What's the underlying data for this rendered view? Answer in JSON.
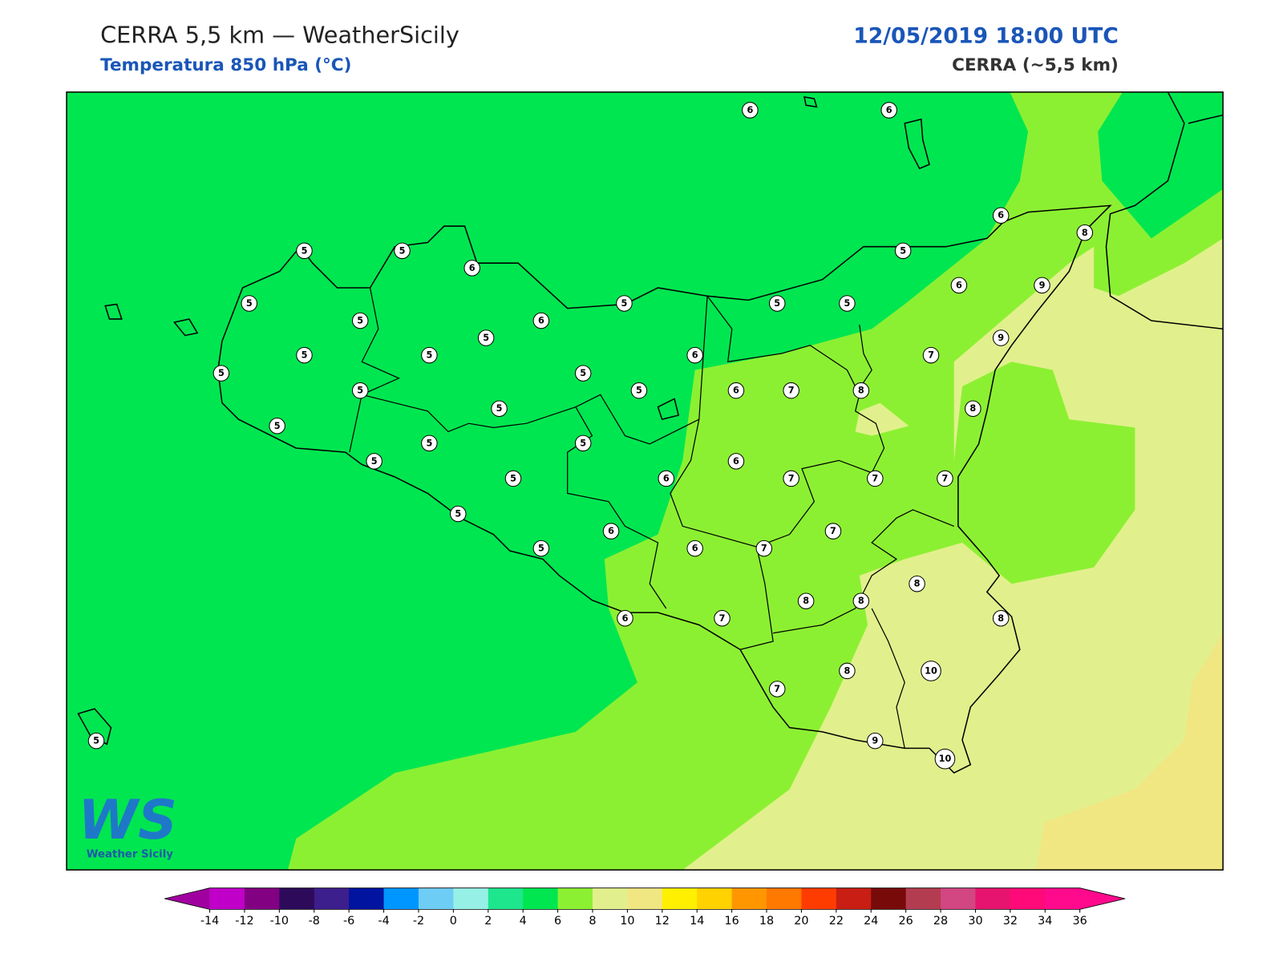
{
  "header": {
    "title": "CERRA 5,5 km — WeatherSicily",
    "subtitle": "Temperatura 850 hPa (°C)",
    "datetime": "12/05/2019 18:00 UTC",
    "model": "CERRA (~5,5 km)"
  },
  "logo": {
    "mark": "WS",
    "text": "Weather Sicily"
  },
  "map": {
    "station_values": [
      6,
      6,
      6,
      8,
      5,
      5,
      6,
      5,
      6,
      9,
      5,
      5,
      5,
      5,
      5,
      6,
      5,
      9,
      5,
      5,
      6,
      7,
      5,
      5,
      5,
      5,
      6,
      7,
      8,
      5,
      8,
      5,
      5,
      5,
      5,
      6,
      5,
      6,
      7,
      7,
      7,
      5,
      7,
      6,
      5,
      6,
      7,
      8,
      8,
      8,
      8,
      6,
      7,
      10,
      8,
      7,
      5,
      9,
      10
    ]
  },
  "colorbar": {
    "ticks": [
      -14,
      -12,
      -10,
      -8,
      -6,
      -4,
      -2,
      0,
      2,
      4,
      6,
      8,
      10,
      12,
      14,
      16,
      18,
      20,
      22,
      24,
      26,
      28,
      30,
      32,
      34,
      36
    ],
    "colors": [
      "#c000c8",
      "#820082",
      "#2d0a5a",
      "#3c1e8c",
      "#0014a0",
      "#0096ff",
      "#6ecdf5",
      "#96f0e6",
      "#1ee68c",
      "#00e650",
      "#8cf032",
      "#e1f08c",
      "#f0e682",
      "#fff000",
      "#ffd200",
      "#ff9600",
      "#ff7800",
      "#ff3c00",
      "#c81e14",
      "#780a0a",
      "#b43c50",
      "#d24682",
      "#e6146e",
      "#ff0a78",
      "#ff0a8c"
    ],
    "under_color": "#a000a0",
    "over_color": "#ff0a8c"
  }
}
